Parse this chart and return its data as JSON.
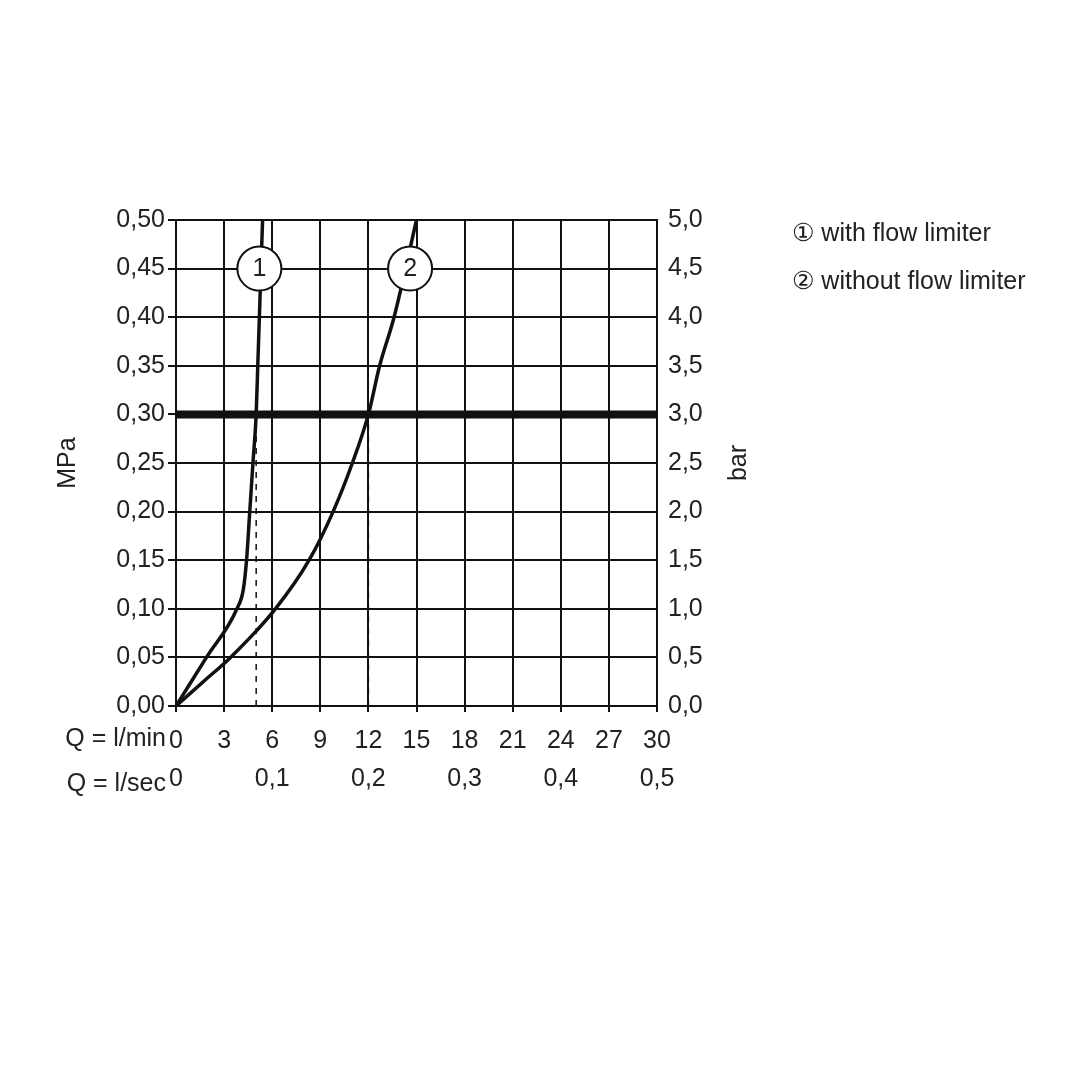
{
  "chart_data": {
    "type": "line",
    "xlabel": "Q = l/min",
    "x2label": "Q = l/sec",
    "ylabel": "MPa",
    "y2label": "bar",
    "xlim": [
      0,
      30
    ],
    "xticks": [
      0,
      3,
      6,
      9,
      12,
      15,
      18,
      21,
      24,
      27,
      30
    ],
    "x2lim": [
      0,
      0.5
    ],
    "x2ticks": [
      0,
      {
        "value": 0.1,
        "label": "0,1"
      },
      {
        "value": 0.2,
        "label": "0,2"
      },
      {
        "value": 0.3,
        "label": "0,3"
      },
      {
        "value": 0.4,
        "label": "0,4"
      },
      {
        "value": 0.5,
        "label": "0,5"
      }
    ],
    "ylim": [
      0,
      0.5
    ],
    "yticks": [
      {
        "value": 0,
        "label": "0,00"
      },
      {
        "value": 0.05,
        "label": "0,05"
      },
      {
        "value": 0.1,
        "label": "0,10"
      },
      {
        "value": 0.15,
        "label": "0,15"
      },
      {
        "value": 0.2,
        "label": "0,20"
      },
      {
        "value": 0.25,
        "label": "0,25"
      },
      {
        "value": 0.3,
        "label": "0,30"
      },
      {
        "value": 0.35,
        "label": "0,35"
      },
      {
        "value": 0.4,
        "label": "0,40"
      },
      {
        "value": 0.45,
        "label": "0,45"
      },
      {
        "value": 0.5,
        "label": "0,50"
      }
    ],
    "y2lim": [
      0,
      5
    ],
    "y2ticks": [
      {
        "value": 0,
        "label": "0,0"
      },
      {
        "value": 0.5,
        "label": "0,5"
      },
      {
        "value": 1,
        "label": "1,0"
      },
      {
        "value": 1.5,
        "label": "1,5"
      },
      {
        "value": 2,
        "label": "2,0"
      },
      {
        "value": 2.5,
        "label": "2,5"
      },
      {
        "value": 3,
        "label": "3,0"
      },
      {
        "value": 3.5,
        "label": "3,5"
      },
      {
        "value": 4,
        "label": "4,0"
      },
      {
        "value": 4.5,
        "label": "4,5"
      },
      {
        "value": 5,
        "label": "5,0"
      }
    ],
    "grid": true,
    "legend": "right",
    "marker": "none",
    "line_style": "solid",
    "series": [
      {
        "name": "① with flow limiter",
        "color": "#111111",
        "x": [
          0,
          1.9,
          3.8,
          4.2,
          4.4,
          4.6,
          4.8,
          5.0,
          5.1,
          5.2,
          5.3,
          5.4
        ],
        "values": [
          0,
          0.05,
          0.1,
          0.12,
          0.15,
          0.2,
          0.25,
          0.3,
          0.35,
          0.4,
          null,
          0.5
        ]
      },
      {
        "name": "② without flow limiter",
        "color": "#111111",
        "x": [
          0,
          1.7,
          3.4,
          6.2,
          8.3,
          9.8,
          11.0,
          12.0,
          12.7,
          13.6,
          14.4,
          15.0
        ],
        "values": [
          0,
          0.025,
          0.05,
          0.1,
          0.15,
          0.2,
          0.25,
          0.3,
          0.35,
          0.4,
          null,
          0.5
        ]
      }
    ],
    "ref_lines": [
      {
        "axis": "y",
        "value": 0.3,
        "color": "#111111",
        "line_style": "solid"
      },
      {
        "axis": "x",
        "value": 5,
        "color": "#111111",
        "line_style": "dashed"
      },
      {
        "axis": "x",
        "value": 12,
        "color": "#111111",
        "line_style": "dashed"
      }
    ],
    "annotations": [
      {
        "text": "1",
        "x": 5.2,
        "y": 0.45
      },
      {
        "text": "2",
        "x": 14.6,
        "y": 0.45
      }
    ]
  }
}
